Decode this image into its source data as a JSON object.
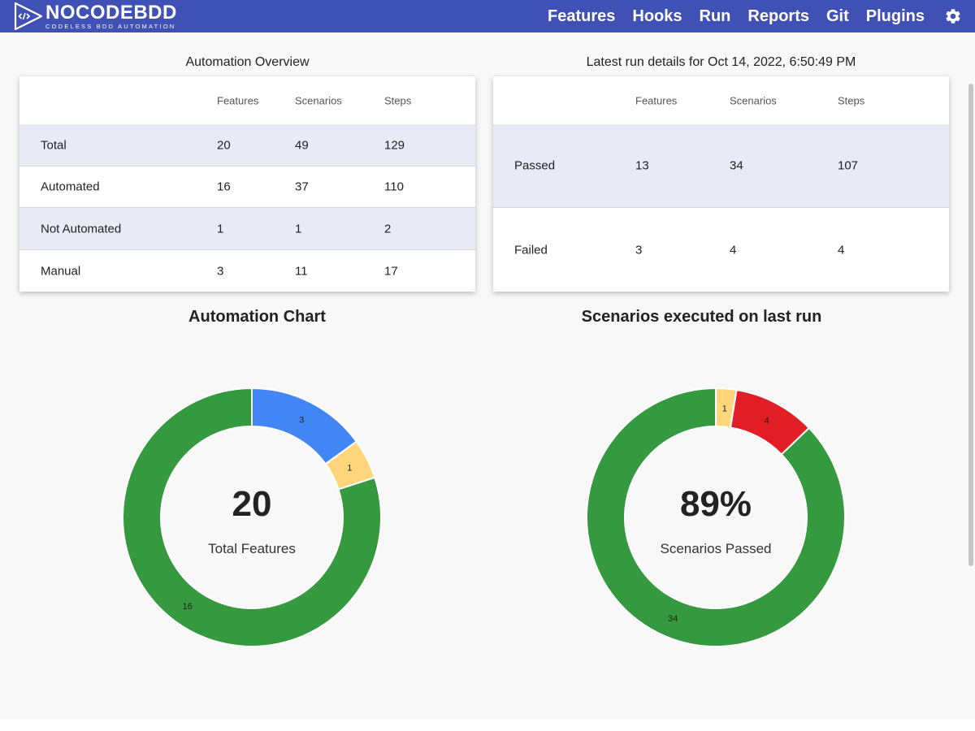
{
  "header": {
    "logo_title": "NOCODEBDD",
    "logo_subtitle": "CODELESS BDD AUTOMATION",
    "nav": [
      "Features",
      "Hooks",
      "Run",
      "Reports",
      "Git",
      "Plugins"
    ],
    "settings_icon": "gear-icon",
    "bar_color": "#3f51b5"
  },
  "overview": {
    "title": "Automation Overview",
    "columns": [
      "Features",
      "Scenarios",
      "Steps"
    ],
    "rows": [
      {
        "label": "Total",
        "values": [
          "20",
          "49",
          "129"
        ]
      },
      {
        "label": "Automated",
        "values": [
          "16",
          "37",
          "110"
        ]
      },
      {
        "label": "Not Automated",
        "values": [
          "1",
          "1",
          "2"
        ]
      },
      {
        "label": "Manual",
        "values": [
          "3",
          "11",
          "17"
        ]
      }
    ]
  },
  "latest_run": {
    "title": "Latest run details for Oct 14, 2022, 6:50:49 PM",
    "columns": [
      "Features",
      "Scenarios",
      "Steps"
    ],
    "rows": [
      {
        "label": "Passed",
        "values": [
          "13",
          "34",
          "107"
        ]
      },
      {
        "label": "Failed",
        "values": [
          "3",
          "4",
          "4"
        ]
      }
    ]
  },
  "automation_chart": {
    "title": "Automation Chart",
    "center_value": "20",
    "center_label": "Total Features"
  },
  "run_chart": {
    "title": "Scenarios executed on last run",
    "center_value": "89%",
    "center_label": "Scenarios Passed"
  },
  "colors": {
    "green": "#34993f",
    "blue": "#4285f4",
    "yellow": "#ffd67c",
    "red": "#e11e26"
  },
  "chart_data": [
    {
      "type": "pie",
      "title": "Automation Chart",
      "slices": [
        {
          "label": "16",
          "value": 16,
          "color": "#34993f"
        },
        {
          "label": "1",
          "value": 1,
          "color": "#ffd67c"
        },
        {
          "label": "3",
          "value": 3,
          "color": "#4285f4"
        }
      ]
    },
    {
      "type": "pie",
      "title": "Scenarios executed on last run",
      "slices": [
        {
          "label": "34",
          "value": 34,
          "color": "#34993f"
        },
        {
          "label": "4",
          "value": 4,
          "color": "#e11e26"
        },
        {
          "label": "1",
          "value": 1,
          "color": "#ffd67c"
        }
      ]
    }
  ]
}
